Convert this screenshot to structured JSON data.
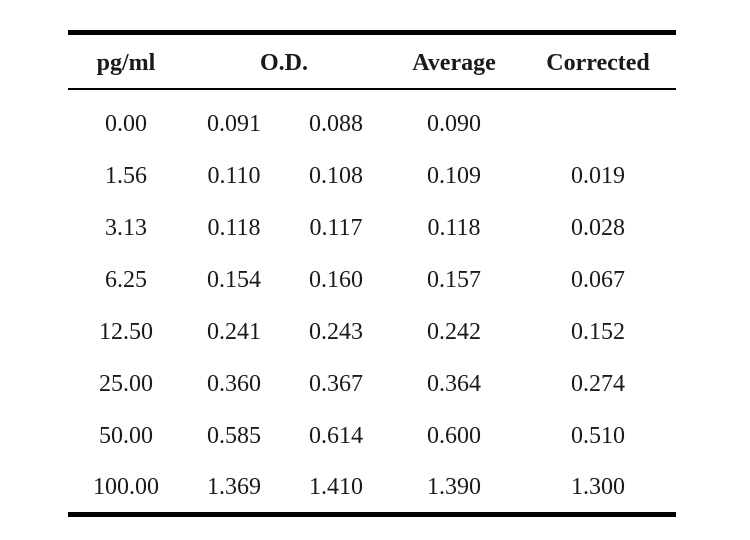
{
  "table": {
    "headers": {
      "concentration": "pg/ml",
      "od": "O.D.",
      "average": "Average",
      "corrected": "Corrected"
    },
    "rows": [
      {
        "conc": "0.00",
        "od1": "0.091",
        "od2": "0.088",
        "avg": "0.090",
        "corr": ""
      },
      {
        "conc": "1.56",
        "od1": "0.110",
        "od2": "0.108",
        "avg": "0.109",
        "corr": "0.019"
      },
      {
        "conc": "3.13",
        "od1": "0.118",
        "od2": "0.117",
        "avg": "0.118",
        "corr": "0.028"
      },
      {
        "conc": "6.25",
        "od1": "0.154",
        "od2": "0.160",
        "avg": "0.157",
        "corr": "0.067"
      },
      {
        "conc": "12.50",
        "od1": "0.241",
        "od2": "0.243",
        "avg": "0.242",
        "corr": "0.152"
      },
      {
        "conc": "25.00",
        "od1": "0.360",
        "od2": "0.367",
        "avg": "0.364",
        "corr": "0.274"
      },
      {
        "conc": "50.00",
        "od1": "0.585",
        "od2": "0.614",
        "avg": "0.600",
        "corr": "0.510"
      },
      {
        "conc": "100.00",
        "od1": "1.369",
        "od2": "1.410",
        "avg": "1.390",
        "corr": "1.300"
      }
    ]
  }
}
